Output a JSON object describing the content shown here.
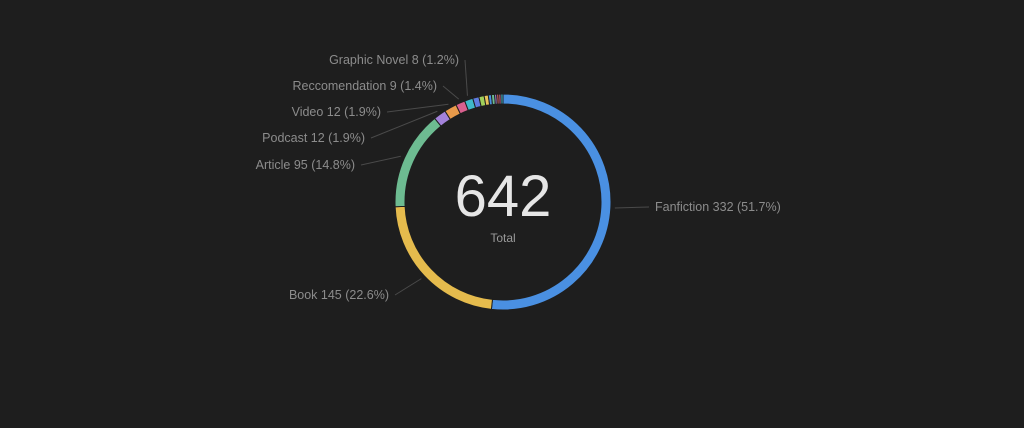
{
  "colors": {
    "background": "#1e1e1e",
    "label_text": "#8c8c8c",
    "leader_line": "#4a4a4a",
    "center_value": "#e6e6e6",
    "center_caption": "#9a9a9a",
    "slice_border": "#1e1e1e"
  },
  "chart_data": {
    "type": "pie",
    "variant": "donut",
    "total": {
      "value": "642",
      "label": "Total"
    },
    "slices": [
      {
        "name": "Fanfiction",
        "value": 332,
        "percent": "51.7%",
        "color": "#4a90e2",
        "label": "Fanfiction  332 (51.7%)"
      },
      {
        "name": "Book",
        "value": 145,
        "percent": "22.6%",
        "color": "#e5bb4d",
        "label": "Book  145 (22.6%)"
      },
      {
        "name": "Article",
        "value": 95,
        "percent": "14.8%",
        "color": "#6dbb91",
        "label": "Article  95 (14.8%)"
      },
      {
        "name": "Podcast",
        "value": 12,
        "percent": "1.9%",
        "color": "#a382da",
        "label": "Podcast  12 (1.9%)"
      },
      {
        "name": "Video",
        "value": 12,
        "percent": "1.9%",
        "color": "#e89a4a",
        "label": "Video  12 (1.9%)"
      },
      {
        "name": "Reccomendation",
        "value": 9,
        "percent": "1.4%",
        "color": "#d9608e",
        "label": "Reccomendation  9 (1.4%)"
      },
      {
        "name": "Graphic Novel",
        "value": 8,
        "percent": "1.2%",
        "color": "#3fb8c9",
        "label": "Graphic Novel  8 (1.2%)"
      },
      {
        "name": "",
        "value": 6,
        "color": "#5f7ce0"
      },
      {
        "name": "",
        "value": 5,
        "color": "#9fcf5a"
      },
      {
        "name": "",
        "value": 4,
        "color": "#e8c25a"
      },
      {
        "name": "",
        "value": 3,
        "color": "#4a90e2"
      },
      {
        "name": "",
        "value": 3,
        "color": "#6dbb91"
      },
      {
        "name": "",
        "value": 2,
        "color": "#a382da"
      },
      {
        "name": "",
        "value": 2,
        "color": "#e0645a"
      },
      {
        "name": "",
        "value": 2,
        "color": "#d9608e"
      },
      {
        "name": "",
        "value": 2,
        "color": "#3fb8c9"
      }
    ]
  }
}
